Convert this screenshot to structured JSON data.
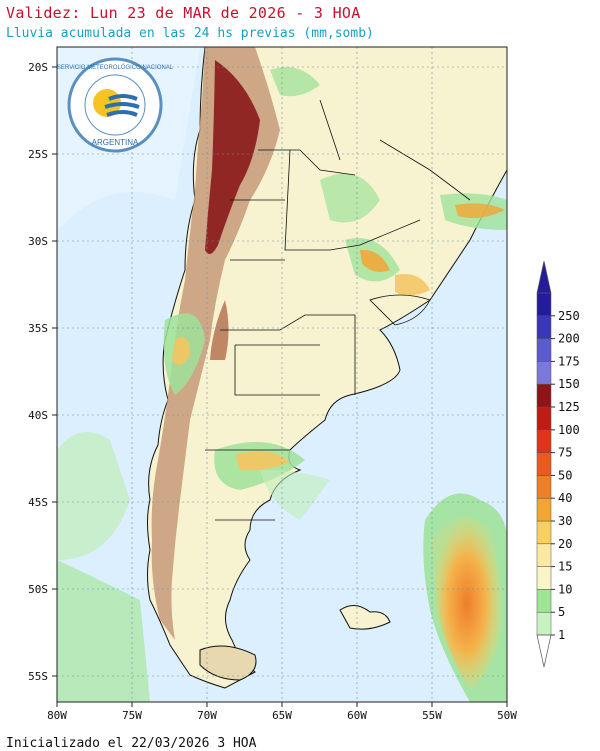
{
  "header": {
    "title": "Validez: Lun 23 de MAR de 2026 - 3 HOA",
    "subtitle": "Lluvia acumulada en las 24 hs previas (mm,somb)"
  },
  "footer": {
    "init_text": "Inicializado el 22/03/2026 3 HOA"
  },
  "logo": {
    "org_text": "SERVICIO METEOROLÓGICO NACIONAL",
    "country_text": "ARGENTINA",
    "colors": {
      "ring": "#5b8fc2",
      "sun": "#f5c423",
      "wave": "#2a6fb0"
    }
  },
  "map": {
    "lat_labels": [
      "20S",
      "25S",
      "30S",
      "35S",
      "40S",
      "45S",
      "50S",
      "55S"
    ],
    "lon_labels": [
      "80W",
      "75W",
      "70W",
      "65W",
      "60W",
      "55W",
      "50W"
    ],
    "colors": {
      "ocean": "#dcefff",
      "land": "#f7f2cf",
      "andes_high": "#8a1a1a",
      "andes_mid": "#c79a7a",
      "rain_light": "#9fe29a",
      "rain_mod": "#f5c460",
      "rain_heavy": "#ef7d2c"
    }
  },
  "colorbar": {
    "labels": [
      "1",
      "5",
      "10",
      "15",
      "20",
      "30",
      "40",
      "50",
      "75",
      "100",
      "125",
      "150",
      "175",
      "200",
      "250"
    ],
    "colors": [
      "#c8f2c0",
      "#9ee596",
      "#f8f6c6",
      "#fbe8a3",
      "#f8d062",
      "#f3a534",
      "#ee7f26",
      "#ea5a1f",
      "#df3419",
      "#c11b15",
      "#8e1417",
      "#7a78d8",
      "#5a5bcc",
      "#3a36b9",
      "#241c9c"
    ]
  }
}
